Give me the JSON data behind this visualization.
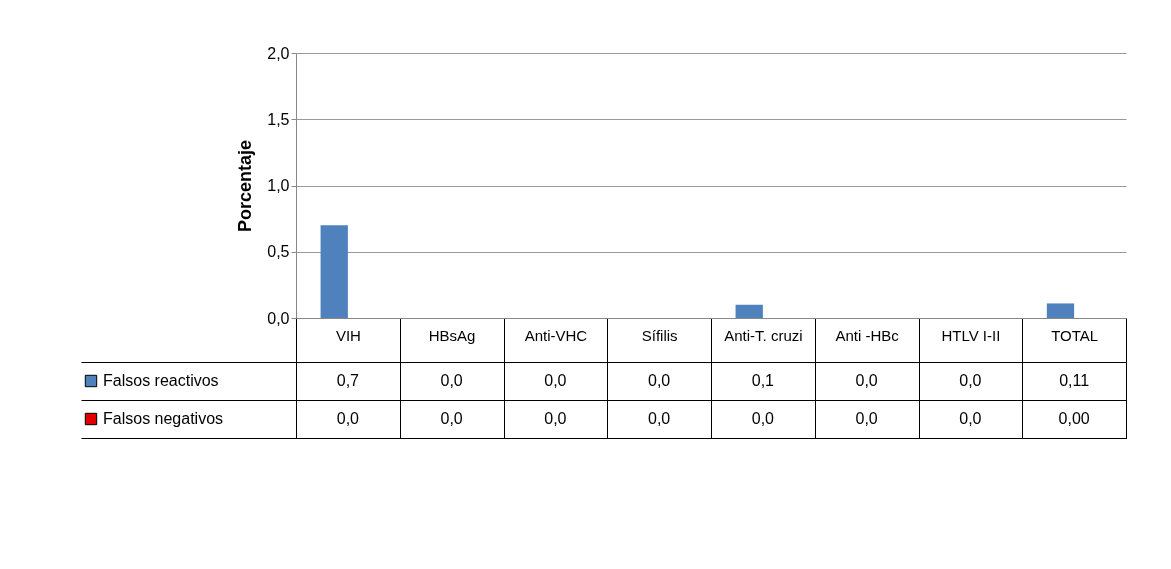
{
  "chart_data": {
    "type": "bar",
    "ylabel": "Porcentaje",
    "categories": [
      "VIH",
      "HBsAg",
      "Anti-VHC",
      "Sífilis",
      "Anti-T. cruzi",
      "Anti -HBc",
      "HTLV I-II",
      "TOTAL"
    ],
    "series": [
      {
        "name": "Falsos reactivos",
        "color": "#4f81bd",
        "values": [
          0.7,
          0.0,
          0.0,
          0.0,
          0.1,
          0.0,
          0.0,
          0.11
        ],
        "value_labels": [
          "0,7",
          "0,0",
          "0,0",
          "0,0",
          "0,1",
          "0,0",
          "0,0",
          "0,11"
        ]
      },
      {
        "name": "Falsos negativos",
        "color": "#e00000",
        "values": [
          0.0,
          0.0,
          0.0,
          0.0,
          0.0,
          0.0,
          0.0,
          0.0
        ],
        "value_labels": [
          "0,0",
          "0,0",
          "0,0",
          "0,0",
          "0,0",
          "0,0",
          "0,0",
          "0,00"
        ]
      }
    ],
    "ylim": [
      0,
      2
    ],
    "yticks": [
      {
        "value": 0,
        "label": "0,0"
      },
      {
        "value": 0.5,
        "label": "0,5"
      },
      {
        "value": 1,
        "label": "1,0"
      },
      {
        "value": 1.5,
        "label": "1,5"
      },
      {
        "value": 2,
        "label": "2,0"
      }
    ],
    "grid": true,
    "legend": "bottom"
  }
}
